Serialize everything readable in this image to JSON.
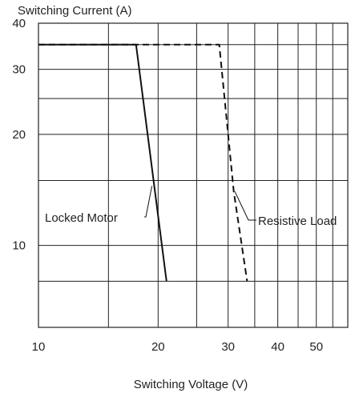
{
  "chart_data": {
    "type": "line",
    "title": "Switching Current (A)",
    "xlabel": "Switching Voltage (V)",
    "ylabel": "",
    "x_scale": "log",
    "y_scale": "log",
    "xlim": [
      10,
      60
    ],
    "ylim": [
      6,
      40
    ],
    "x_ticks": [
      10,
      20,
      30,
      40,
      50
    ],
    "x_tick_labels": [
      "10",
      "20",
      "30",
      "40",
      "50"
    ],
    "y_ticks": [
      10,
      20,
      30,
      40
    ],
    "y_tick_labels": [
      "10",
      "20",
      "30",
      "40"
    ],
    "grid": true,
    "series": [
      {
        "name": "Locked Motor",
        "style": "solid",
        "points": [
          [
            10,
            35
          ],
          [
            17.6,
            35
          ],
          [
            21,
            8
          ]
        ]
      },
      {
        "name": "Resistive Load",
        "style": "dashed",
        "points": [
          [
            10,
            35
          ],
          [
            28.5,
            35
          ],
          [
            31,
            14
          ],
          [
            33.5,
            8
          ]
        ]
      }
    ],
    "annotations": [
      {
        "text": "Locked Motor",
        "series": "Locked Motor"
      },
      {
        "text": "Resistive Load",
        "series": "Resistive Load"
      }
    ],
    "colors": {
      "line": "#111111",
      "grid": "#222222",
      "text": "#222222"
    }
  }
}
